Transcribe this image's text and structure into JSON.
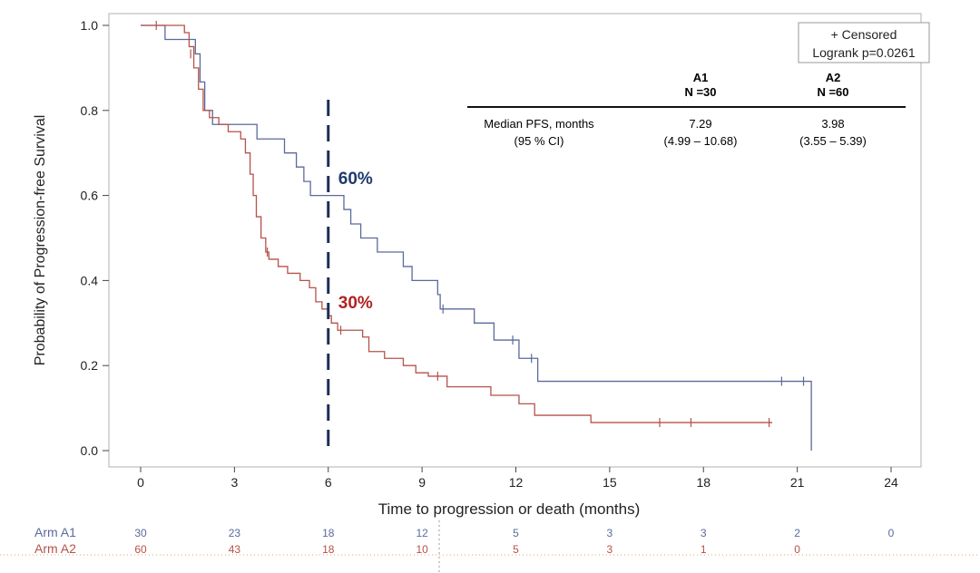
{
  "chart_data": {
    "type": "line",
    "subtype": "kaplan-meier step",
    "xlabel": "Time to progression or death (months)",
    "ylabel": "Probability of Progression-free Survival",
    "xlim": [
      0,
      24
    ],
    "ylim": [
      0,
      1.0
    ],
    "x_ticks": [
      "0",
      "3",
      "6",
      "9",
      "12",
      "15",
      "18",
      "21",
      "24"
    ],
    "y_ticks": [
      "0.0",
      "0.2",
      "0.4",
      "0.6",
      "0.8",
      "1.0"
    ],
    "grid": false,
    "legend": {
      "position": "top-right",
      "censored_label": "+ Censored",
      "logrank": "Logrank p=0.0261"
    },
    "series": [
      {
        "name": "A1",
        "color": "#5a6a9c",
        "steps": [
          [
            0,
            1.0
          ],
          [
            0.78,
            0.967
          ],
          [
            1.75,
            0.933
          ],
          [
            1.9,
            0.867
          ],
          [
            2.05,
            0.8
          ],
          [
            2.3,
            0.767
          ],
          [
            3.72,
            0.733
          ],
          [
            4.6,
            0.7
          ],
          [
            4.98,
            0.667
          ],
          [
            5.22,
            0.633
          ],
          [
            5.43,
            0.6
          ],
          [
            6.5,
            0.567
          ],
          [
            6.72,
            0.533
          ],
          [
            7.04,
            0.5
          ],
          [
            7.57,
            0.467
          ],
          [
            8.4,
            0.433
          ],
          [
            8.68,
            0.4
          ],
          [
            9.5,
            0.367
          ],
          [
            9.58,
            0.333
          ],
          [
            10.67,
            0.3
          ],
          [
            11.3,
            0.26
          ],
          [
            12.1,
            0.217
          ],
          [
            12.7,
            0.163
          ],
          [
            21.45,
            0.0
          ]
        ],
        "end": 21.45,
        "censored": [
          [
            9.67,
            0.333
          ],
          [
            11.9,
            0.26
          ],
          [
            12.5,
            0.217
          ],
          [
            20.5,
            0.163
          ],
          [
            21.2,
            0.163
          ]
        ]
      },
      {
        "name": "A2",
        "color": "#b5524a",
        "steps": [
          [
            0,
            1.0
          ],
          [
            1.4,
            0.983
          ],
          [
            1.55,
            0.95
          ],
          [
            1.7,
            0.9
          ],
          [
            1.85,
            0.85
          ],
          [
            2.0,
            0.8
          ],
          [
            2.2,
            0.783
          ],
          [
            2.5,
            0.767
          ],
          [
            2.8,
            0.75
          ],
          [
            3.2,
            0.733
          ],
          [
            3.35,
            0.7
          ],
          [
            3.5,
            0.65
          ],
          [
            3.6,
            0.6
          ],
          [
            3.7,
            0.55
          ],
          [
            3.85,
            0.5
          ],
          [
            4.0,
            0.467
          ],
          [
            4.1,
            0.45
          ],
          [
            4.4,
            0.433
          ],
          [
            4.7,
            0.417
          ],
          [
            5.1,
            0.4
          ],
          [
            5.4,
            0.383
          ],
          [
            5.6,
            0.35
          ],
          [
            5.8,
            0.333
          ],
          [
            6.0,
            0.317
          ],
          [
            6.1,
            0.3
          ],
          [
            6.3,
            0.283
          ],
          [
            7.1,
            0.267
          ],
          [
            7.3,
            0.233
          ],
          [
            7.8,
            0.217
          ],
          [
            8.4,
            0.2
          ],
          [
            8.8,
            0.183
          ],
          [
            9.2,
            0.175
          ],
          [
            9.8,
            0.15
          ],
          [
            11.2,
            0.13
          ],
          [
            12.1,
            0.11
          ],
          [
            12.6,
            0.083
          ],
          [
            14.4,
            0.066
          ]
        ],
        "end": 20.2,
        "censored": [
          [
            0.5,
            1.0
          ],
          [
            1.6,
            0.933
          ],
          [
            4.05,
            0.467
          ],
          [
            6.4,
            0.283
          ],
          [
            9.5,
            0.175
          ],
          [
            16.6,
            0.066
          ],
          [
            17.6,
            0.066
          ],
          [
            20.1,
            0.066
          ]
        ]
      }
    ],
    "reference_line": {
      "x": 6,
      "color": "#1f2d55"
    },
    "annotations": [
      {
        "text": "60%",
        "x": 6,
        "y": 0.6,
        "color": "#1f3a6e"
      },
      {
        "text": "30%",
        "x": 6,
        "y": 0.3,
        "color": "#b22222"
      }
    ],
    "summary_table": {
      "columns": [
        {
          "arm": "A1",
          "n": "N =30"
        },
        {
          "arm": "A2",
          "n": "N =60"
        }
      ],
      "row_label": [
        "Median PFS, months",
        "(95 % CI)"
      ],
      "values": [
        [
          "7.29",
          "(4.99 – 10.68)"
        ],
        [
          "3.98",
          "(3.55 – 5.39)"
        ]
      ]
    },
    "at_risk": {
      "rows": [
        {
          "label": "Arm A1",
          "color": "#5a6a9c",
          "values": [
            "30",
            "23",
            "18",
            "12",
            "5",
            "3",
            "3",
            "2",
            "0"
          ]
        },
        {
          "label": "Arm A2",
          "color": "#b5524a",
          "values": [
            "60",
            "43",
            "18",
            "10",
            "5",
            "3",
            "1",
            "0"
          ]
        }
      ]
    }
  }
}
